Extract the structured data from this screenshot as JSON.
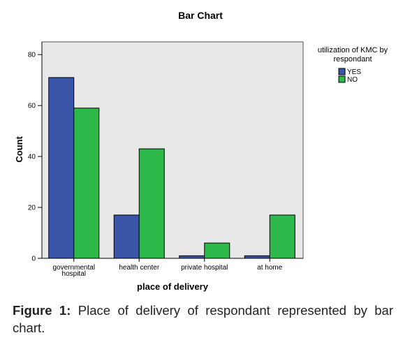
{
  "chart_data": {
    "type": "bar",
    "title": "Bar Chart",
    "xlabel": "place of delivery",
    "ylabel": "Count",
    "categories": [
      [
        "governmental",
        "hospital"
      ],
      [
        "health center"
      ],
      [
        "private hospital"
      ],
      [
        "at home"
      ]
    ],
    "series": [
      {
        "name": "YES",
        "color": "#3a54a8",
        "values": [
          71,
          17,
          1,
          1
        ]
      },
      {
        "name": "NO",
        "color": "#2eb84a",
        "values": [
          59,
          43,
          6,
          17
        ]
      }
    ],
    "ylim": [
      0,
      85
    ],
    "yticks": [
      0,
      20,
      40,
      60,
      80
    ],
    "grid": false,
    "plot_background": "#e8e8e8",
    "legend": {
      "title": [
        "utilization of KMC by",
        "respondant"
      ],
      "placement": "top-right, outside plot"
    }
  },
  "caption": {
    "label": "Figure 1:",
    "text": "Place of delivery of respondant represented by bar chart."
  }
}
